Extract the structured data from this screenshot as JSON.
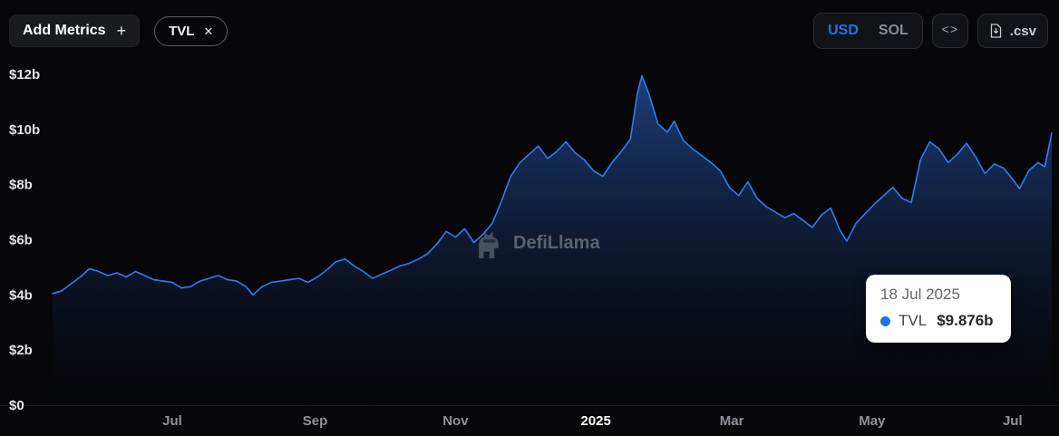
{
  "toolbar": {
    "add_metrics_label": "Add Metrics",
    "add_metrics_icon": "+",
    "metric_pill": {
      "label": "TVL",
      "close_icon": "✕"
    },
    "currency_toggle": {
      "options": [
        "USD",
        "SOL"
      ],
      "selected": "USD"
    },
    "embed_label": "<>",
    "csv_label": ".csv"
  },
  "watermark": {
    "text": "DefiLlama"
  },
  "tooltip": {
    "date": "18 Jul 2025",
    "series": "TVL",
    "value": "$9.876b"
  },
  "colors": {
    "accent": "#2172e5",
    "line": "#2e7cf6",
    "area_top": "rgba(47,111,219,0.55)",
    "area_mid": "rgba(27,60,125,0.30)",
    "area_bottom": "rgba(8,12,24,0.05)",
    "axis_line": "rgba(255,255,255,0.08)"
  },
  "chart_data": {
    "type": "area",
    "title": "TVL",
    "xlabel": "",
    "ylabel": "",
    "unit": "USD billions",
    "ylim": [
      0,
      12
    ],
    "x_range": [
      "2024-05-10",
      "2025-07-18"
    ],
    "grid": false,
    "legend": false,
    "y_ticks": [
      {
        "label": "$0",
        "value": 0
      },
      {
        "label": "$2b",
        "value": 2
      },
      {
        "label": "$4b",
        "value": 4
      },
      {
        "label": "$6b",
        "value": 6
      },
      {
        "label": "$8b",
        "value": 8
      },
      {
        "label": "$10b",
        "value": 10
      },
      {
        "label": "$12b",
        "value": 12
      }
    ],
    "x_ticks": [
      {
        "label": "Jul",
        "date": "2024-07-01",
        "emphasis": false
      },
      {
        "label": "Sep",
        "date": "2024-09-01",
        "emphasis": false
      },
      {
        "label": "Nov",
        "date": "2024-11-01",
        "emphasis": false
      },
      {
        "label": "2025",
        "date": "2025-01-01",
        "emphasis": true
      },
      {
        "label": "Mar",
        "date": "2025-03-01",
        "emphasis": false
      },
      {
        "label": "May",
        "date": "2025-05-01",
        "emphasis": false
      },
      {
        "label": "Jul",
        "date": "2025-07-01",
        "emphasis": false
      }
    ],
    "series": [
      {
        "name": "TVL",
        "color": "#2e7cf6",
        "points": [
          [
            "2024-05-10",
            4.05
          ],
          [
            "2024-05-14",
            4.15
          ],
          [
            "2024-05-18",
            4.4
          ],
          [
            "2024-05-22",
            4.65
          ],
          [
            "2024-05-26",
            4.95
          ],
          [
            "2024-05-30",
            4.85
          ],
          [
            "2024-06-03",
            4.7
          ],
          [
            "2024-06-07",
            4.8
          ],
          [
            "2024-06-11",
            4.65
          ],
          [
            "2024-06-15",
            4.85
          ],
          [
            "2024-06-19",
            4.7
          ],
          [
            "2024-06-23",
            4.55
          ],
          [
            "2024-06-27",
            4.5
          ],
          [
            "2024-07-01",
            4.45
          ],
          [
            "2024-07-05",
            4.25
          ],
          [
            "2024-07-09",
            4.3
          ],
          [
            "2024-07-13",
            4.5
          ],
          [
            "2024-07-17",
            4.6
          ],
          [
            "2024-07-21",
            4.7
          ],
          [
            "2024-07-25",
            4.55
          ],
          [
            "2024-07-29",
            4.5
          ],
          [
            "2024-08-02",
            4.3
          ],
          [
            "2024-08-05",
            4.0
          ],
          [
            "2024-08-09",
            4.3
          ],
          [
            "2024-08-13",
            4.45
          ],
          [
            "2024-08-17",
            4.5
          ],
          [
            "2024-08-21",
            4.55
          ],
          [
            "2024-08-25",
            4.6
          ],
          [
            "2024-08-29",
            4.45
          ],
          [
            "2024-09-02",
            4.65
          ],
          [
            "2024-09-06",
            4.9
          ],
          [
            "2024-09-10",
            5.2
          ],
          [
            "2024-09-14",
            5.3
          ],
          [
            "2024-09-18",
            5.05
          ],
          [
            "2024-09-22",
            4.85
          ],
          [
            "2024-09-26",
            4.6
          ],
          [
            "2024-09-30",
            4.75
          ],
          [
            "2024-10-04",
            4.9
          ],
          [
            "2024-10-08",
            5.05
          ],
          [
            "2024-10-12",
            5.15
          ],
          [
            "2024-10-16",
            5.3
          ],
          [
            "2024-10-20",
            5.5
          ],
          [
            "2024-10-24",
            5.85
          ],
          [
            "2024-10-28",
            6.3
          ],
          [
            "2024-11-01",
            6.1
          ],
          [
            "2024-11-05",
            6.4
          ],
          [
            "2024-11-09",
            5.9
          ],
          [
            "2024-11-13",
            6.2
          ],
          [
            "2024-11-17",
            6.6
          ],
          [
            "2024-11-21",
            7.4
          ],
          [
            "2024-11-25",
            8.3
          ],
          [
            "2024-11-29",
            8.8
          ],
          [
            "2024-12-03",
            9.1
          ],
          [
            "2024-12-07",
            9.4
          ],
          [
            "2024-12-11",
            8.95
          ],
          [
            "2024-12-15",
            9.2
          ],
          [
            "2024-12-19",
            9.55
          ],
          [
            "2024-12-23",
            9.15
          ],
          [
            "2024-12-27",
            8.9
          ],
          [
            "2024-12-31",
            8.5
          ],
          [
            "2025-01-04",
            8.3
          ],
          [
            "2025-01-08",
            8.8
          ],
          [
            "2025-01-12",
            9.2
          ],
          [
            "2025-01-16",
            9.65
          ],
          [
            "2025-01-19",
            11.3
          ],
          [
            "2025-01-21",
            11.95
          ],
          [
            "2025-01-24",
            11.3
          ],
          [
            "2025-01-28",
            10.2
          ],
          [
            "2025-02-01",
            9.9
          ],
          [
            "2025-02-04",
            10.3
          ],
          [
            "2025-02-08",
            9.6
          ],
          [
            "2025-02-12",
            9.3
          ],
          [
            "2025-02-16",
            9.05
          ],
          [
            "2025-02-20",
            8.8
          ],
          [
            "2025-02-24",
            8.5
          ],
          [
            "2025-02-28",
            7.9
          ],
          [
            "2025-03-04",
            7.6
          ],
          [
            "2025-03-08",
            8.1
          ],
          [
            "2025-03-12",
            7.5
          ],
          [
            "2025-03-16",
            7.2
          ],
          [
            "2025-03-20",
            7.0
          ],
          [
            "2025-03-24",
            6.8
          ],
          [
            "2025-03-28",
            6.95
          ],
          [
            "2025-04-01",
            6.7
          ],
          [
            "2025-04-05",
            6.45
          ],
          [
            "2025-04-09",
            6.9
          ],
          [
            "2025-04-13",
            7.15
          ],
          [
            "2025-04-17",
            6.35
          ],
          [
            "2025-04-20",
            5.95
          ],
          [
            "2025-04-24",
            6.6
          ],
          [
            "2025-04-28",
            6.95
          ],
          [
            "2025-05-02",
            7.3
          ],
          [
            "2025-05-06",
            7.6
          ],
          [
            "2025-05-10",
            7.9
          ],
          [
            "2025-05-14",
            7.5
          ],
          [
            "2025-05-18",
            7.35
          ],
          [
            "2025-05-22",
            8.9
          ],
          [
            "2025-05-26",
            9.55
          ],
          [
            "2025-05-30",
            9.3
          ],
          [
            "2025-06-03",
            8.8
          ],
          [
            "2025-06-07",
            9.1
          ],
          [
            "2025-06-11",
            9.5
          ],
          [
            "2025-06-15",
            9.0
          ],
          [
            "2025-06-19",
            8.4
          ],
          [
            "2025-06-23",
            8.75
          ],
          [
            "2025-06-27",
            8.6
          ],
          [
            "2025-07-01",
            8.2
          ],
          [
            "2025-07-04",
            7.85
          ],
          [
            "2025-07-08",
            8.5
          ],
          [
            "2025-07-12",
            8.8
          ],
          [
            "2025-07-15",
            8.65
          ],
          [
            "2025-07-18",
            9.876
          ]
        ]
      }
    ]
  }
}
